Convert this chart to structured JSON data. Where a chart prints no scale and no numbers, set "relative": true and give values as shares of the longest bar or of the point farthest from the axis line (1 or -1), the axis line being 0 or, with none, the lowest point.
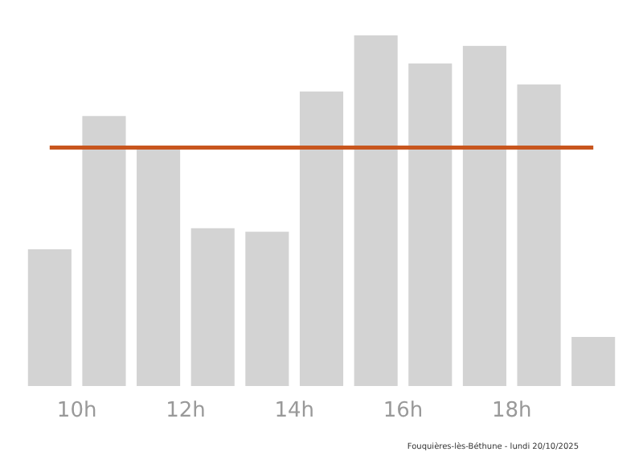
{
  "chart_data": {
    "type": "bar",
    "relative": true,
    "x": [
      9.5,
      10.5,
      11.5,
      12.5,
      13.5,
      14.5,
      15.5,
      16.5,
      17.5,
      18.5,
      19.5
    ],
    "values": [
      0.39,
      0.77,
      0.68,
      0.45,
      0.44,
      0.84,
      1,
      0.92,
      0.97,
      0.86,
      0.14
    ],
    "color": "#d3d3d3",
    "xlim": [
      9,
      20
    ],
    "xticks": [
      {
        "value": 10,
        "label": "10h"
      },
      {
        "value": 12,
        "label": "12h"
      },
      {
        "value": 14,
        "label": "14h"
      },
      {
        "value": 16,
        "label": "16h"
      },
      {
        "value": 18,
        "label": "18h"
      }
    ],
    "ref_lines": [
      {
        "axis": "y",
        "value": 0.68,
        "color": "#c8561e"
      }
    ],
    "annotations": [
      "Fouquières-lès-Béthune - lundi 20/10/2025"
    ]
  }
}
